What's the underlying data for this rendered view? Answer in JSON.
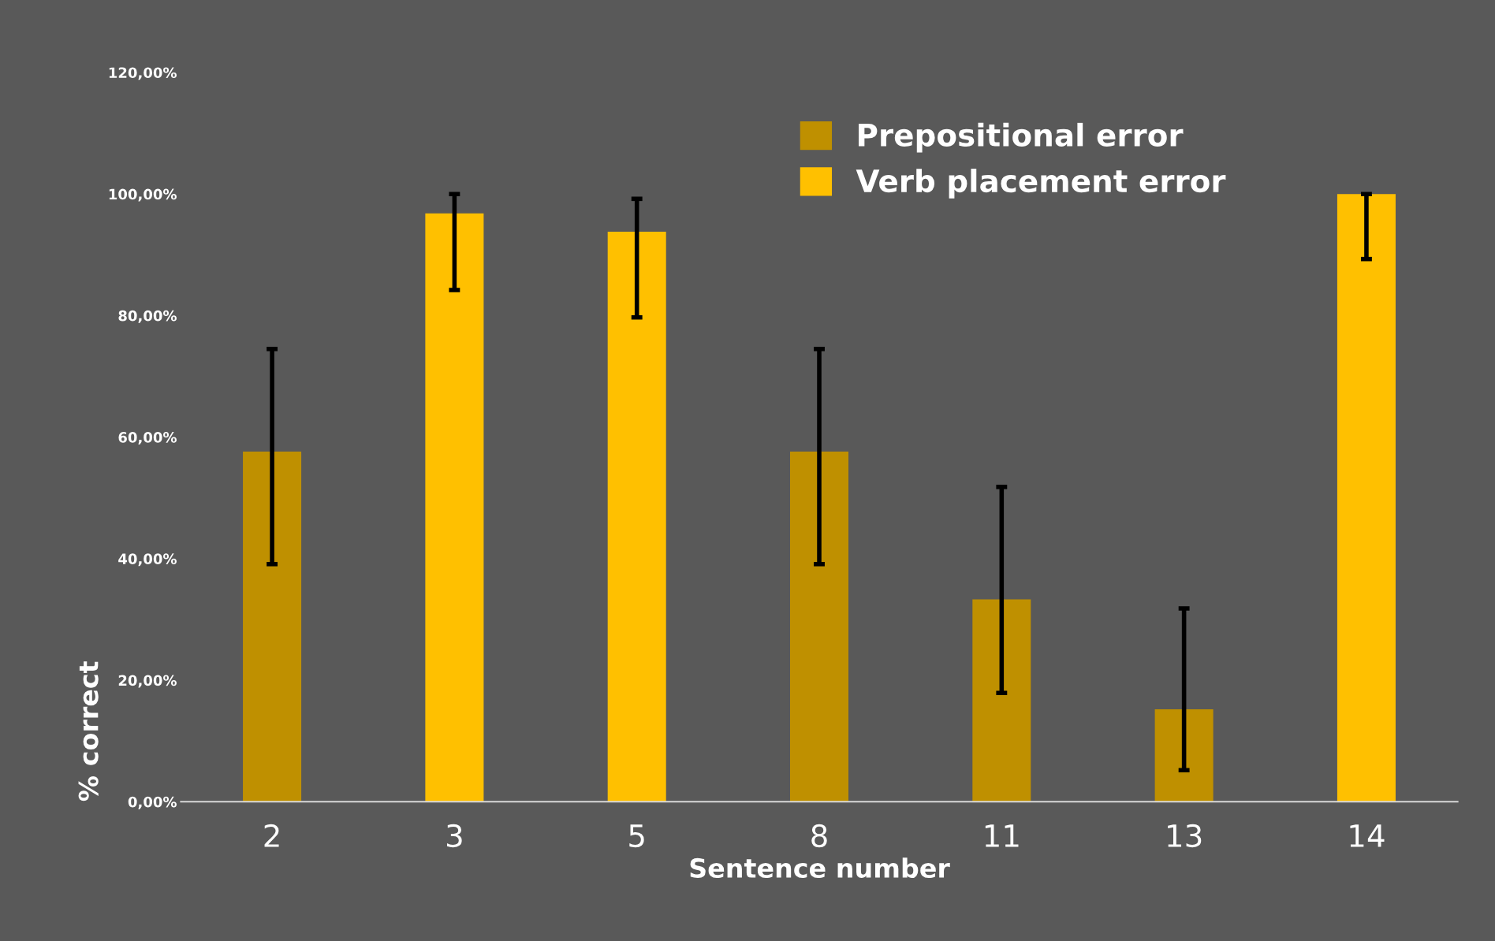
{
  "chart_data": {
    "type": "bar",
    "xlabel": "Sentence number",
    "ylabel": "% correct",
    "categories": [
      "2",
      "3",
      "5",
      "8",
      "11",
      "13",
      "14"
    ],
    "series": [
      {
        "name": "Prepositional error",
        "color": "#bf9000",
        "values": [
          57.6,
          null,
          null,
          57.6,
          33.3,
          15.2,
          null
        ],
        "errors": [
          [
            39.1,
            74.5
          ],
          null,
          null,
          [
            39.1,
            74.5
          ],
          [
            17.9,
            51.8
          ],
          [
            5.2,
            31.8
          ],
          null
        ]
      },
      {
        "name": "Verb placement error",
        "color": "#ffc000",
        "values": [
          null,
          96.8,
          93.8,
          null,
          null,
          null,
          100
        ],
        "errors": [
          null,
          [
            84.2,
            100
          ],
          [
            79.7,
            99.2
          ],
          null,
          null,
          null,
          [
            89.3,
            100
          ]
        ]
      }
    ],
    "ylim": [
      0,
      120
    ],
    "yticks": [
      {
        "value": 0,
        "label": "0,00%"
      },
      {
        "value": 20,
        "label": "20,00%"
      },
      {
        "value": 40,
        "label": "40,00%"
      },
      {
        "value": 60,
        "label": "60,00%"
      },
      {
        "value": 80,
        "label": "80,00%"
      },
      {
        "value": 100,
        "label": "100,00%"
      },
      {
        "value": 120,
        "label": "120,00%"
      }
    ],
    "grid": false,
    "legend": "top right"
  }
}
